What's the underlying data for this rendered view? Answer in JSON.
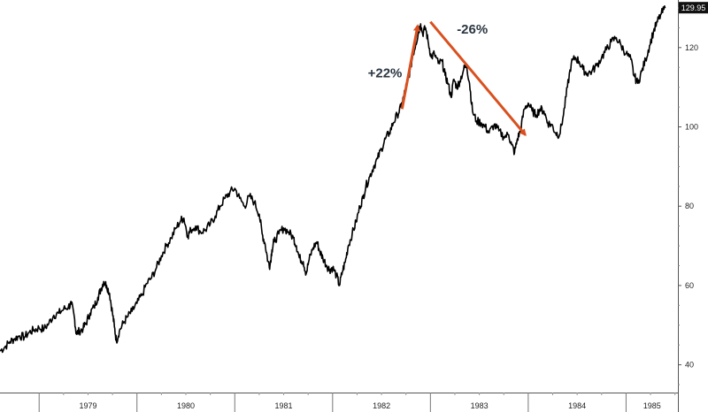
{
  "chart_data": {
    "type": "line",
    "title": "",
    "xlabel": "",
    "ylabel": "",
    "xlim": [
      1978.6,
      1985.53
    ],
    "ylim": [
      33,
      132
    ],
    "x_ticks": [
      "1979",
      "1980",
      "1981",
      "1982",
      "1983",
      "1984",
      "1985"
    ],
    "y_ticks": [
      40,
      60,
      80,
      100,
      120
    ],
    "grid": false,
    "line_color": "#000000",
    "arrow_color": "#d9501f",
    "last_value_label": "129.95",
    "series": [
      {
        "points": [
          [
            1978.6,
            43.5
          ],
          [
            1978.65,
            44.5
          ],
          [
            1978.7,
            45.8
          ],
          [
            1978.75,
            46.6
          ],
          [
            1978.8,
            47.3
          ],
          [
            1978.85,
            47.0
          ],
          [
            1978.9,
            48.2
          ],
          [
            1978.95,
            48.8
          ],
          [
            1979.0,
            49.3
          ],
          [
            1979.05,
            49.0
          ],
          [
            1979.1,
            50.5
          ],
          [
            1979.15,
            52.5
          ],
          [
            1979.2,
            53.0
          ],
          [
            1979.25,
            54.0
          ],
          [
            1979.3,
            54.7
          ],
          [
            1979.33,
            55.3
          ],
          [
            1979.36,
            52.0
          ],
          [
            1979.38,
            47.8
          ],
          [
            1979.41,
            48.5
          ],
          [
            1979.45,
            49.2
          ],
          [
            1979.48,
            50.5
          ],
          [
            1979.52,
            53.0
          ],
          [
            1979.56,
            54.5
          ],
          [
            1979.6,
            57.0
          ],
          [
            1979.63,
            59.0
          ],
          [
            1979.66,
            61.0
          ],
          [
            1979.69,
            60.0
          ],
          [
            1979.72,
            58.0
          ],
          [
            1979.75,
            53.0
          ],
          [
            1979.77,
            49.5
          ],
          [
            1979.79,
            46.0
          ],
          [
            1979.82,
            48.5
          ],
          [
            1979.86,
            50.5
          ],
          [
            1979.9,
            52.0
          ],
          [
            1979.95,
            53.5
          ],
          [
            1980.0,
            55.5
          ],
          [
            1980.05,
            57.5
          ],
          [
            1980.1,
            60.5
          ],
          [
            1980.15,
            62.0
          ],
          [
            1980.2,
            64.5
          ],
          [
            1980.25,
            67.5
          ],
          [
            1980.3,
            70.0
          ],
          [
            1980.35,
            72.0
          ],
          [
            1980.4,
            74.5
          ],
          [
            1980.45,
            76.5
          ],
          [
            1980.48,
            77.0
          ],
          [
            1980.52,
            72.5
          ],
          [
            1980.55,
            74.0
          ],
          [
            1980.6,
            75.0
          ],
          [
            1980.65,
            73.5
          ],
          [
            1980.7,
            74.0
          ],
          [
            1980.75,
            75.5
          ],
          [
            1980.8,
            77.5
          ],
          [
            1980.85,
            80.0
          ],
          [
            1980.9,
            82.0
          ],
          [
            1980.95,
            83.5
          ],
          [
            1981.0,
            84.5
          ],
          [
            1981.05,
            82.0
          ],
          [
            1981.1,
            80.0
          ],
          [
            1981.15,
            82.5
          ],
          [
            1981.2,
            81.0
          ],
          [
            1981.25,
            78.0
          ],
          [
            1981.28,
            73.0
          ],
          [
            1981.31,
            70.5
          ],
          [
            1981.34,
            66.0
          ],
          [
            1981.36,
            65.0
          ],
          [
            1981.38,
            69.0
          ],
          [
            1981.4,
            71.0
          ],
          [
            1981.45,
            73.0
          ],
          [
            1981.5,
            74.5
          ],
          [
            1981.55,
            73.5
          ],
          [
            1981.6,
            72.0
          ],
          [
            1981.63,
            70.0
          ],
          [
            1981.66,
            67.0
          ],
          [
            1981.7,
            66.0
          ],
          [
            1981.73,
            63.0
          ],
          [
            1981.76,
            66.5
          ],
          [
            1981.8,
            69.5
          ],
          [
            1981.84,
            71.0
          ],
          [
            1981.87,
            68.5
          ],
          [
            1981.9,
            67.0
          ],
          [
            1981.94,
            65.0
          ],
          [
            1981.97,
            64.0
          ],
          [
            1982.0,
            64.5
          ],
          [
            1982.04,
            62.5
          ],
          [
            1982.07,
            60.0
          ],
          [
            1982.1,
            63.5
          ],
          [
            1982.13,
            66.0
          ],
          [
            1982.16,
            70.0
          ],
          [
            1982.2,
            73.0
          ],
          [
            1982.24,
            76.0
          ],
          [
            1982.28,
            80.0
          ],
          [
            1982.31,
            82.0
          ],
          [
            1982.34,
            85.0
          ],
          [
            1982.38,
            87.5
          ],
          [
            1982.42,
            90.0
          ],
          [
            1982.46,
            92.0
          ],
          [
            1982.5,
            94.5
          ],
          [
            1982.54,
            97.0
          ],
          [
            1982.58,
            98.5
          ],
          [
            1982.62,
            101.0
          ],
          [
            1982.66,
            103.0
          ],
          [
            1982.7,
            105.0
          ],
          [
            1982.73,
            108.0
          ],
          [
            1982.76,
            111.0
          ],
          [
            1982.79,
            114.0
          ],
          [
            1982.82,
            118.0
          ],
          [
            1982.85,
            121.0
          ],
          [
            1982.88,
            124.0
          ],
          [
            1982.9,
            126.0
          ],
          [
            1982.92,
            123.5
          ],
          [
            1982.95,
            125.0
          ],
          [
            1982.98,
            121.0
          ],
          [
            1983.01,
            117.5
          ],
          [
            1983.04,
            118.5
          ],
          [
            1983.08,
            116.0
          ],
          [
            1983.12,
            116.5
          ],
          [
            1983.15,
            113.0
          ],
          [
            1983.18,
            111.0
          ],
          [
            1983.21,
            107.5
          ],
          [
            1983.24,
            112.0
          ],
          [
            1983.27,
            110.0
          ],
          [
            1983.3,
            111.5
          ],
          [
            1983.34,
            114.5
          ],
          [
            1983.37,
            115.5
          ],
          [
            1983.4,
            111.0
          ],
          [
            1983.43,
            104.0
          ],
          [
            1983.47,
            101.5
          ],
          [
            1983.52,
            101.0
          ],
          [
            1983.56,
            100.0
          ],
          [
            1983.6,
            98.5
          ],
          [
            1983.65,
            100.5
          ],
          [
            1983.7,
            99.0
          ],
          [
            1983.75,
            97.5
          ],
          [
            1983.8,
            98.0
          ],
          [
            1983.83,
            95.5
          ],
          [
            1983.86,
            93.5
          ],
          [
            1983.89,
            97.0
          ],
          [
            1983.92,
            99.0
          ],
          [
            1983.96,
            104.5
          ],
          [
            1984.0,
            106.0
          ],
          [
            1984.04,
            104.0
          ],
          [
            1984.08,
            103.0
          ],
          [
            1984.12,
            104.5
          ],
          [
            1984.16,
            104.0
          ],
          [
            1984.2,
            101.0
          ],
          [
            1984.24,
            100.5
          ],
          [
            1984.28,
            98.5
          ],
          [
            1984.32,
            98.0
          ],
          [
            1984.36,
            103.0
          ],
          [
            1984.4,
            110.0
          ],
          [
            1984.44,
            116.0
          ],
          [
            1984.48,
            117.5
          ],
          [
            1984.52,
            116.5
          ],
          [
            1984.56,
            114.5
          ],
          [
            1984.6,
            113.5
          ],
          [
            1984.65,
            114.0
          ],
          [
            1984.7,
            115.5
          ],
          [
            1984.75,
            117.5
          ],
          [
            1984.8,
            119.5
          ],
          [
            1984.85,
            121.5
          ],
          [
            1984.9,
            122.5
          ],
          [
            1984.95,
            120.5
          ],
          [
            1985.0,
            118.5
          ],
          [
            1985.05,
            117.0
          ],
          [
            1985.08,
            113.0
          ],
          [
            1985.12,
            111.0
          ],
          [
            1985.16,
            114.0
          ],
          [
            1985.2,
            117.0
          ],
          [
            1985.24,
            120.5
          ],
          [
            1985.28,
            124.0
          ],
          [
            1985.32,
            126.5
          ],
          [
            1985.36,
            128.5
          ],
          [
            1985.4,
            129.95
          ]
        ]
      }
    ],
    "annotations": [
      {
        "text": "+22%",
        "x": 1982.36,
        "y": 112.5,
        "arrow_from": [
          1982.71,
          104.5
        ],
        "arrow_to": [
          1982.87,
          125.5
        ]
      },
      {
        "text": "-26%",
        "x": 1983.27,
        "y": 123.5,
        "arrow_from": [
          1983.0,
          126.5
        ],
        "arrow_to": [
          1983.97,
          98.0
        ]
      }
    ]
  }
}
